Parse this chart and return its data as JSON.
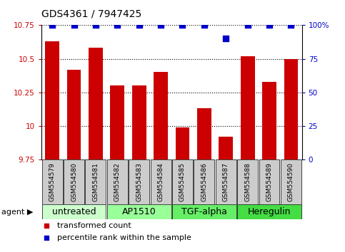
{
  "title": "GDS4361 / 7947425",
  "samples": [
    "GSM554579",
    "GSM554580",
    "GSM554581",
    "GSM554582",
    "GSM554583",
    "GSM554584",
    "GSM554585",
    "GSM554586",
    "GSM554587",
    "GSM554588",
    "GSM554589",
    "GSM554590"
  ],
  "bar_values": [
    10.63,
    10.42,
    10.58,
    10.3,
    10.3,
    10.4,
    9.99,
    10.13,
    9.92,
    10.52,
    10.33,
    10.5
  ],
  "percentile_values": [
    100,
    100,
    100,
    100,
    100,
    100,
    100,
    100,
    90,
    100,
    100,
    100
  ],
  "bar_color": "#cc0000",
  "dot_color": "#0000cc",
  "ylim_left": [
    9.75,
    10.75
  ],
  "yticks_left": [
    9.75,
    10.0,
    10.25,
    10.5,
    10.75
  ],
  "ytick_left_labels": [
    "9.75",
    "10",
    "10.25",
    "10.5",
    "10.75"
  ],
  "ylim_right": [
    0,
    100
  ],
  "yticks_right": [
    0,
    25,
    50,
    75,
    100
  ],
  "ytick_right_labels": [
    "0",
    "25",
    "50",
    "75",
    "100%"
  ],
  "groups": [
    {
      "label": "untreated",
      "start": 0,
      "end": 3,
      "color": "#ccffcc"
    },
    {
      "label": "AP1510",
      "start": 3,
      "end": 6,
      "color": "#99ff99"
    },
    {
      "label": "TGF-alpha",
      "start": 6,
      "end": 9,
      "color": "#66ee66"
    },
    {
      "label": "Heregulin",
      "start": 9,
      "end": 12,
      "color": "#44dd44"
    }
  ],
  "bar_width": 0.65,
  "dot_size": 28,
  "background_color": "#ffffff",
  "sample_box_color": "#cccccc",
  "legend_items": [
    {
      "label": "transformed count",
      "color": "#cc0000"
    },
    {
      "label": "percentile rank within the sample",
      "color": "#0000cc"
    }
  ],
  "agent_label": "agent ▶",
  "title_fontsize": 10,
  "tick_fontsize": 7.5,
  "sample_fontsize": 6.5,
  "group_label_fontsize": 9,
  "legend_fontsize": 8,
  "agent_fontsize": 8
}
